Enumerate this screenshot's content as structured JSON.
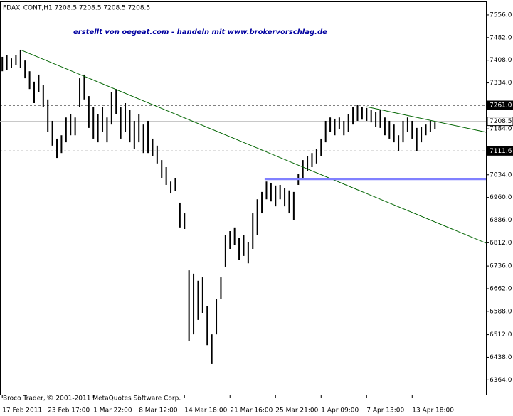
{
  "chart_data": {
    "type": "hl-bars",
    "title": "FDAX_CONT,H1  7208.5 7208.5 7208.5 7208.5",
    "subtitle": "erstellt von oegeat.com - handeln mit www.brokervorschlag.de",
    "footer": "Broco Trader, © 2001-2011 MetaQuotes Software Corp.",
    "color": "#000000",
    "xlim": [
      -0.5,
      106.2
    ],
    "ylim": [
      6316,
      7600
    ],
    "x": [
      0,
      1,
      2,
      3,
      4,
      5,
      6,
      7,
      8,
      9,
      10,
      11,
      12,
      13,
      14,
      15,
      16,
      17,
      18,
      19,
      20,
      21,
      22,
      23,
      24,
      25,
      26,
      27,
      28,
      29,
      30,
      31,
      32,
      33,
      34,
      35,
      36,
      37,
      38,
      39,
      40,
      41,
      42,
      43,
      44,
      45,
      46,
      47,
      48,
      49,
      50,
      51,
      52,
      53,
      54,
      55,
      56,
      57,
      58,
      59,
      60,
      61,
      62,
      63,
      64,
      65,
      66,
      67,
      68,
      69,
      70,
      71,
      72,
      73,
      74,
      75,
      76,
      77,
      78,
      79,
      80,
      81,
      82,
      83,
      84,
      85,
      86,
      87,
      88,
      89,
      90,
      91,
      92,
      93,
      94,
      95
    ],
    "high": [
      7419,
      7424,
      7414,
      7424,
      7442,
      7407,
      7372,
      7338,
      7361,
      7326,
      7280,
      7210,
      7152,
      7163,
      7221,
      7233,
      7221,
      7349,
      7361,
      7291,
      7256,
      7233,
      7256,
      7221,
      7303,
      7314,
      7256,
      7268,
      7245,
      7210,
      7233,
      7198,
      7210,
      7152,
      7129,
      7082,
      7059,
      7012,
      7024,
      6943,
      6908,
      6722,
      6711,
      6688,
      6699,
      6606,
      6513,
      6629,
      6699,
      6838,
      6850,
      6862,
      6827,
      6838,
      6815,
      6908,
      6954,
      6978,
      7012,
      7008,
      6999,
      7001,
      6990,
      6983,
      6978,
      7036,
      7082,
      7094,
      7105,
      7117,
      7152,
      7210,
      7221,
      7217,
      7221,
      7210,
      7233,
      7256,
      7261,
      7256,
      7252,
      7245,
      7238,
      7245,
      7221,
      7210,
      7198,
      7163,
      7210,
      7221,
      7210,
      7187,
      7191,
      7198,
      7210,
      7205
    ],
    "low": [
      7372,
      7377,
      7384,
      7391,
      7384,
      7349,
      7314,
      7268,
      7303,
      7256,
      7175,
      7129,
      7089,
      7105,
      7140,
      7163,
      7163,
      7256,
      7280,
      7187,
      7152,
      7140,
      7175,
      7140,
      7198,
      7233,
      7152,
      7175,
      7140,
      7117,
      7140,
      7105,
      7105,
      7094,
      7071,
      7024,
      7001,
      6973,
      6982,
      6862,
      6857,
      6490,
      6513,
      6560,
      6583,
      6478,
      6416,
      6513,
      6629,
      6734,
      6792,
      6804,
      6757,
      6769,
      6745,
      6792,
      6838,
      6908,
      6954,
      6947,
      6931,
      6954,
      6931,
      6908,
      6885,
      7001,
      7024,
      7047,
      7059,
      7071,
      7094,
      7140,
      7175,
      7163,
      7182,
      7163,
      7175,
      7198,
      7210,
      7214,
      7210,
      7205,
      7191,
      7187,
      7163,
      7152,
      7140,
      7111,
      7140,
      7175,
      7152,
      7112,
      7140,
      7163,
      7175,
      7182
    ],
    "xticks": [
      {
        "value": 0,
        "label": "17 Feb 2011"
      },
      {
        "value": 10,
        "label": "23 Feb 17:00"
      },
      {
        "value": 20,
        "label": "1 Mar 22:00"
      },
      {
        "value": 30,
        "label": "8 Mar 12:00"
      },
      {
        "value": 40,
        "label": "14 Mar 18:00"
      },
      {
        "value": 50,
        "label": "21 Mar 16:00"
      },
      {
        "value": 60,
        "label": "25 Mar 21:00"
      },
      {
        "value": 70,
        "label": "1 Apr 09:00"
      },
      {
        "value": 80,
        "label": "7 Apr 13:00"
      },
      {
        "value": 90,
        "label": "13 Apr 18:00"
      }
    ],
    "yticks": [
      {
        "value": 7556,
        "label": "7556.0"
      },
      {
        "value": 7482,
        "label": "7482.0"
      },
      {
        "value": 7408,
        "label": "7408.0"
      },
      {
        "value": 7334,
        "label": "7334.0"
      },
      {
        "value": 7184,
        "label": "7184.0"
      },
      {
        "value": 7034,
        "label": "7034.0"
      },
      {
        "value": 6960,
        "label": "6960.0"
      },
      {
        "value": 6886,
        "label": "6886.0"
      },
      {
        "value": 6812,
        "label": "6812.0"
      },
      {
        "value": 6736,
        "label": "6736.0"
      },
      {
        "value": 6662,
        "label": "6662.0"
      },
      {
        "value": 6588,
        "label": "6588.0"
      },
      {
        "value": 6512,
        "label": "6512.0"
      },
      {
        "value": 6438,
        "label": "6438.0"
      },
      {
        "value": 6364,
        "label": "6364.0"
      }
    ],
    "levels": [
      {
        "value": 7261,
        "label": "7261.0",
        "style": "dashed",
        "color": "#000000"
      },
      {
        "value": 7208.5,
        "label": "7208.5",
        "style": "solid",
        "color": "#c0c0c0"
      },
      {
        "value": 7111.6,
        "label": "7111.6",
        "style": "dashed",
        "color": "#000000"
      }
    ],
    "trendlines": [
      {
        "color": "#006400",
        "width": 1,
        "from": [
          4,
          7442
        ],
        "to": [
          106.2,
          6811
        ]
      },
      {
        "color": "#006400",
        "width": 1,
        "from": [
          80,
          7256
        ],
        "to": [
          106.2,
          7173
        ]
      },
      {
        "color": "#8080ff",
        "width": 3,
        "from": [
          57.6,
          7020
        ],
        "to": [
          106.2,
          7020
        ]
      }
    ]
  }
}
